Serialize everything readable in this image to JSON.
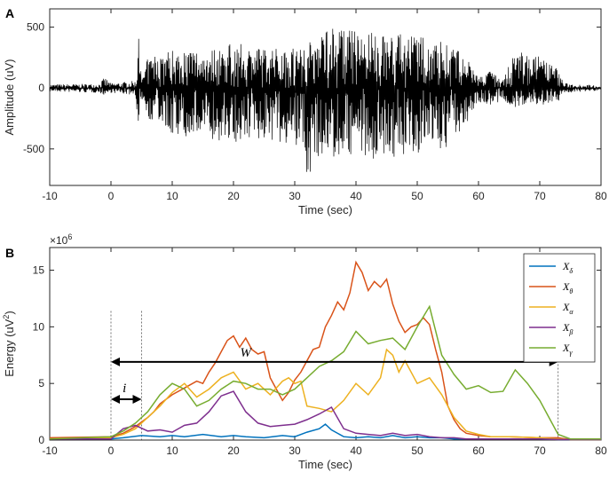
{
  "chart_data": [
    {
      "panel": "A",
      "type": "line",
      "xlabel": "Time (sec)",
      "ylabel": "Amplitude (uV)",
      "xlim": [
        -10,
        80
      ],
      "ylim": [
        -800,
        650
      ],
      "xticks": [
        "-10",
        "0",
        "10",
        "20",
        "30",
        "40",
        "50",
        "60",
        "70",
        "80"
      ],
      "yticks": [
        "-500",
        "0",
        "500"
      ],
      "series": [
        {
          "color": "#000000",
          "envelope": {
            "t": [
              -10,
              -2,
              -1,
              0,
              4,
              4.5,
              5,
              6,
              8,
              10,
              15,
              20,
              25,
              30,
              32,
              35,
              40,
              45,
              50,
              55,
              58,
              60,
              62,
              64,
              66,
              70,
              73,
              74,
              80
            ],
            "max": [
              30,
              35,
              90,
              40,
              60,
              420,
              60,
              250,
              300,
              320,
              320,
              370,
              330,
              350,
              360,
              520,
              470,
              450,
              430,
              380,
              250,
              100,
              140,
              60,
              320,
              260,
              160,
              40,
              20
            ],
            "min": [
              -30,
              -40,
              -60,
              -40,
              -60,
              -520,
              -60,
              -250,
              -350,
              -380,
              -420,
              -450,
              -420,
              -480,
              -740,
              -580,
              -540,
              -620,
              -540,
              -500,
              -300,
              -120,
              -150,
              -120,
              -160,
              -140,
              -120,
              -40,
              -20
            ]
          }
        }
      ]
    },
    {
      "panel": "B",
      "type": "line",
      "xlabel": "Time (sec)",
      "ylabel": "Energy (uV",
      "ylabel_sup": "2",
      "ylabel_end": ")",
      "exponent": "×10",
      "exponent_sup": "6",
      "xlim": [
        -10,
        80
      ],
      "ylim": [
        0,
        17
      ],
      "xticks": [
        "-10",
        "0",
        "10",
        "20",
        "30",
        "40",
        "50",
        "60",
        "70",
        "80"
      ],
      "yticks": [
        "0",
        "5",
        "10",
        "15"
      ],
      "legend_position": "top-right",
      "annotations": {
        "i": {
          "label": "i",
          "from": 0,
          "to": 5,
          "y": 3.6
        },
        "W": {
          "label": "W",
          "from": 0,
          "to": 73,
          "y": 6.9
        }
      },
      "series": [
        {
          "name": "X",
          "sub": "δ",
          "color": "#0072bd",
          "x": [
            -10,
            0,
            2,
            5,
            8,
            10,
            12,
            15,
            18,
            20,
            22,
            25,
            28,
            30,
            32,
            34,
            35,
            36,
            38,
            40,
            42,
            44,
            46,
            48,
            50,
            52,
            54,
            56,
            58,
            60,
            70,
            73,
            80
          ],
          "y": [
            0.1,
            0.1,
            0.2,
            0.4,
            0.3,
            0.4,
            0.3,
            0.5,
            0.3,
            0.4,
            0.3,
            0.2,
            0.4,
            0.3,
            0.7,
            1.0,
            1.4,
            0.9,
            0.3,
            0.2,
            0.3,
            0.2,
            0.4,
            0.2,
            0.3,
            0.2,
            0.2,
            0.1,
            0.1,
            0.1,
            0.1,
            0.05,
            0.05
          ]
        },
        {
          "name": "X",
          "sub": "θ",
          "color": "#d95319",
          "x": [
            -10,
            0,
            2,
            4,
            6,
            7,
            8,
            10,
            12,
            14,
            15,
            16,
            17,
            18,
            19,
            20,
            21,
            22,
            23,
            24,
            25,
            26,
            27,
            28,
            29,
            30,
            31,
            32,
            33,
            34,
            35,
            36,
            37,
            38,
            39,
            40,
            41,
            42,
            43,
            44,
            45,
            46,
            47,
            48,
            49,
            50,
            51,
            52,
            53,
            54,
            55,
            56,
            57,
            58,
            60,
            62,
            65,
            70,
            73,
            75,
            80
          ],
          "y": [
            0.2,
            0.3,
            0.6,
            1.2,
            2.0,
            2.5,
            3.2,
            4.0,
            4.6,
            5.2,
            5.0,
            6.0,
            6.8,
            7.8,
            8.8,
            9.2,
            8.2,
            9.0,
            8.0,
            7.6,
            7.8,
            5.5,
            4.5,
            3.5,
            4.2,
            5.3,
            6.0,
            7.0,
            8.0,
            8.2,
            10.0,
            11.0,
            12.2,
            11.5,
            13.0,
            15.7,
            14.8,
            13.2,
            14.0,
            13.5,
            14.2,
            12.0,
            10.5,
            9.5,
            10.0,
            10.2,
            10.8,
            10.2,
            8.0,
            6.0,
            3.0,
            1.8,
            1.0,
            0.6,
            0.4,
            0.3,
            0.3,
            0.2,
            0.2,
            0.05,
            0.05
          ]
        },
        {
          "name": "X",
          "sub": "α",
          "color": "#edb120",
          "x": [
            -10,
            0,
            2,
            4,
            6,
            8,
            10,
            12,
            14,
            16,
            18,
            20,
            22,
            24,
            26,
            28,
            29,
            30,
            31,
            32,
            34,
            36,
            38,
            40,
            42,
            44,
            45,
            46,
            47,
            48,
            50,
            52,
            54,
            56,
            58,
            60,
            62,
            65,
            70,
            73,
            75,
            80
          ],
          "y": [
            0.1,
            0.2,
            0.5,
            1.0,
            2.0,
            3.0,
            4.2,
            5.0,
            3.8,
            4.5,
            5.5,
            6.0,
            4.5,
            5.0,
            4.0,
            5.2,
            5.5,
            5.0,
            5.2,
            3.0,
            2.8,
            2.5,
            3.5,
            5.0,
            4.0,
            5.5,
            8.0,
            7.5,
            6.0,
            7.0,
            5.0,
            5.5,
            4.0,
            2.0,
            0.8,
            0.5,
            0.3,
            0.3,
            0.2,
            0.1,
            0.05,
            0.05
          ]
        },
        {
          "name": "X",
          "sub": "β",
          "color": "#7e2f8e",
          "x": [
            -10,
            0,
            2,
            4,
            6,
            8,
            10,
            12,
            14,
            16,
            18,
            20,
            22,
            24,
            26,
            28,
            30,
            32,
            34,
            36,
            38,
            40,
            42,
            44,
            46,
            48,
            50,
            52,
            54,
            56,
            58,
            60,
            70,
            73,
            80
          ],
          "y": [
            0.1,
            0.1,
            1.0,
            1.3,
            0.8,
            0.9,
            0.7,
            1.3,
            1.5,
            2.5,
            3.9,
            4.3,
            2.5,
            1.5,
            1.2,
            1.3,
            1.4,
            1.8,
            2.3,
            2.9,
            1.0,
            0.6,
            0.5,
            0.4,
            0.6,
            0.4,
            0.5,
            0.3,
            0.2,
            0.2,
            0.1,
            0.1,
            0.1,
            0.05,
            0.05
          ]
        },
        {
          "name": "X",
          "sub": "γ",
          "color": "#77ac30",
          "x": [
            -10,
            0,
            2,
            4,
            6,
            8,
            10,
            12,
            14,
            16,
            18,
            20,
            22,
            24,
            26,
            28,
            30,
            32,
            34,
            36,
            38,
            40,
            42,
            44,
            46,
            48,
            50,
            52,
            54,
            56,
            58,
            60,
            62,
            64,
            66,
            68,
            70,
            72,
            73,
            75,
            80
          ],
          "y": [
            0.1,
            0.3,
            0.8,
            1.5,
            2.5,
            4.0,
            5.0,
            4.5,
            3.0,
            3.5,
            4.5,
            5.2,
            5.0,
            4.5,
            4.5,
            4.0,
            4.5,
            5.5,
            6.5,
            7.0,
            7.8,
            9.6,
            8.5,
            8.8,
            9.0,
            8.0,
            10.0,
            11.8,
            7.5,
            5.8,
            4.5,
            4.8,
            4.2,
            4.3,
            6.2,
            5.0,
            3.5,
            1.5,
            0.5,
            0.1,
            0.1
          ]
        }
      ]
    }
  ],
  "labels": {
    "panel_a": "A",
    "panel_b": "B"
  }
}
